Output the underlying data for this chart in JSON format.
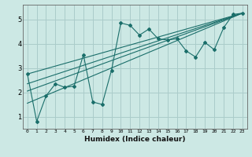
{
  "xlabel": "Humidex (Indice chaleur)",
  "bg_color": "#cce8e4",
  "grid_color": "#aaccca",
  "line_color": "#1a6e6a",
  "xlim": [
    -0.5,
    23.5
  ],
  "ylim": [
    0.5,
    5.6
  ],
  "yticks": [
    1,
    2,
    3,
    4,
    5
  ],
  "xticks": [
    0,
    1,
    2,
    3,
    4,
    5,
    6,
    7,
    8,
    9,
    10,
    11,
    12,
    13,
    14,
    15,
    16,
    17,
    18,
    19,
    20,
    21,
    22,
    23
  ],
  "series": [
    [
      0,
      2.75
    ],
    [
      1,
      0.8
    ],
    [
      2,
      1.85
    ],
    [
      3,
      2.35
    ],
    [
      4,
      2.2
    ],
    [
      5,
      2.25
    ],
    [
      6,
      3.55
    ],
    [
      7,
      1.6
    ],
    [
      8,
      1.5
    ],
    [
      9,
      2.9
    ],
    [
      10,
      4.85
    ],
    [
      11,
      4.75
    ],
    [
      12,
      4.35
    ],
    [
      13,
      4.6
    ],
    [
      14,
      4.2
    ],
    [
      15,
      4.15
    ],
    [
      16,
      4.2
    ],
    [
      17,
      3.7
    ],
    [
      18,
      3.45
    ],
    [
      19,
      4.05
    ],
    [
      20,
      3.75
    ],
    [
      21,
      4.65
    ],
    [
      22,
      5.2
    ],
    [
      23,
      5.25
    ]
  ],
  "regression_lines": [
    {
      "x0": 0,
      "y0": 1.55,
      "x1": 23,
      "y1": 5.25
    },
    {
      "x0": 0,
      "y0": 2.05,
      "x1": 23,
      "y1": 5.25
    },
    {
      "x0": 0,
      "y0": 2.35,
      "x1": 23,
      "y1": 5.25
    },
    {
      "x0": 0,
      "y0": 2.75,
      "x1": 23,
      "y1": 5.25
    }
  ]
}
